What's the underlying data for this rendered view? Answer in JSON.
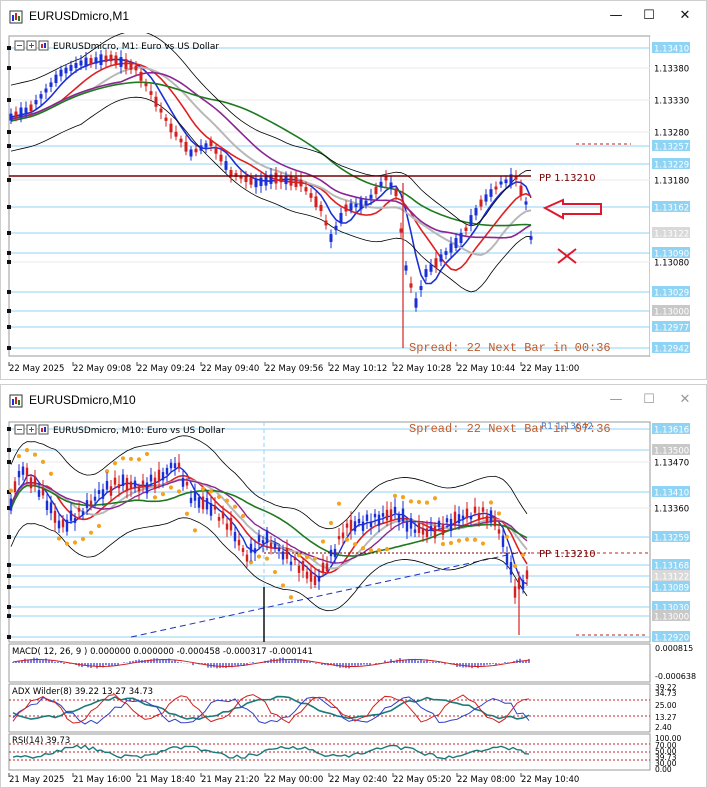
{
  "colors": {
    "up": "#1a2fd6",
    "down": "#d42020",
    "pp": "#7a0000",
    "ma_red": "#e02020",
    "ma_purple": "#8b2591",
    "ma_green": "#1f7a1f",
    "ma_gray": "#b8b8b8",
    "bb": "#000000",
    "psar": "#f3a31f",
    "grid": "#8fd3f5",
    "spread": "#c25a2a",
    "arrow": "#e0182b"
  },
  "window1": {
    "title": "EURUSDmicro,M1",
    "info": "EURUSDmicro, M1:  Euro vs US Dollar",
    "pp_label": "PP 1.13210",
    "spread_text": "Spread: 22  Next Bar in 00:36",
    "price_labels": [
      {
        "text": "1.13410",
        "boxed": true
      },
      {
        "text": "1.13380",
        "boxed": false
      },
      {
        "text": "1.13330",
        "boxed": false
      },
      {
        "text": "1.13280",
        "boxed": false
      },
      {
        "text": "1.13257",
        "boxed": true
      },
      {
        "text": "1.13229",
        "boxed": true
      },
      {
        "text": "1.13180",
        "boxed": false
      },
      {
        "text": "1.13162",
        "boxed": true
      },
      {
        "text": "1.13122",
        "boxed": true
      },
      {
        "text": "1.13090",
        "boxed": true
      },
      {
        "text": "1.13080",
        "boxed": false
      },
      {
        "text": "1.13029",
        "boxed": true
      },
      {
        "text": "1.13000",
        "boxed": true
      },
      {
        "text": "1.12977",
        "boxed": true
      },
      {
        "text": "1.12942",
        "boxed": true
      }
    ],
    "time_labels": [
      "22 May 2025",
      "22 May 09:08",
      "22 May 09:24",
      "22 May 09:40",
      "22 May 09:56",
      "22 May 10:12",
      "22 May 10:28",
      "22 May 10:44",
      "22 May 11:00"
    ]
  },
  "window2": {
    "title": "EURUSDmicro,M10",
    "info": "EURUSDmicro, M10:  Euro vs US Dollar",
    "r1_label": "R1 1.13642",
    "pp_label": "PP 1.13210",
    "spread_text": "Spread: 22  Next Bar in 07:36",
    "price_labels": [
      {
        "text": "1.13616",
        "boxed": true
      },
      {
        "text": "1.13500",
        "boxed": true
      },
      {
        "text": "1.13470",
        "boxed": false
      },
      {
        "text": "1.13410",
        "boxed": true
      },
      {
        "text": "1.13360",
        "boxed": false
      },
      {
        "text": "1.13259",
        "boxed": true
      },
      {
        "text": "1.13168",
        "boxed": true
      },
      {
        "text": "1.13122",
        "boxed": true
      },
      {
        "text": "1.13089",
        "boxed": true
      },
      {
        "text": "1.13030",
        "boxed": true
      },
      {
        "text": "1.13000",
        "boxed": true
      },
      {
        "text": "1.12920",
        "boxed": true
      }
    ],
    "macd": {
      "label": "MACD( 12, 26, 9 ) 0.000000 0.000000 -0.000458 -0.000317 -0.000141",
      "scale": [
        "0.000815",
        "-0.000638"
      ]
    },
    "adx": {
      "label": "ADX Wilder(8) 39.22 13.27 34.73",
      "scale": [
        "39.22",
        "34.73",
        "25.00",
        "13.27",
        "2.40"
      ]
    },
    "rsi": {
      "label": "RSI(14) 39.73",
      "scale": [
        "100.00",
        "70.00",
        "50.00",
        "39.73",
        "30.00",
        "0.00"
      ]
    },
    "time_labels": [
      "21 May 2025",
      "21 May 16:00",
      "21 May 18:40",
      "21 May 21:20",
      "22 May 00:00",
      "22 May 02:40",
      "22 May 05:20",
      "22 May 08:00",
      "22 May 10:40"
    ]
  }
}
